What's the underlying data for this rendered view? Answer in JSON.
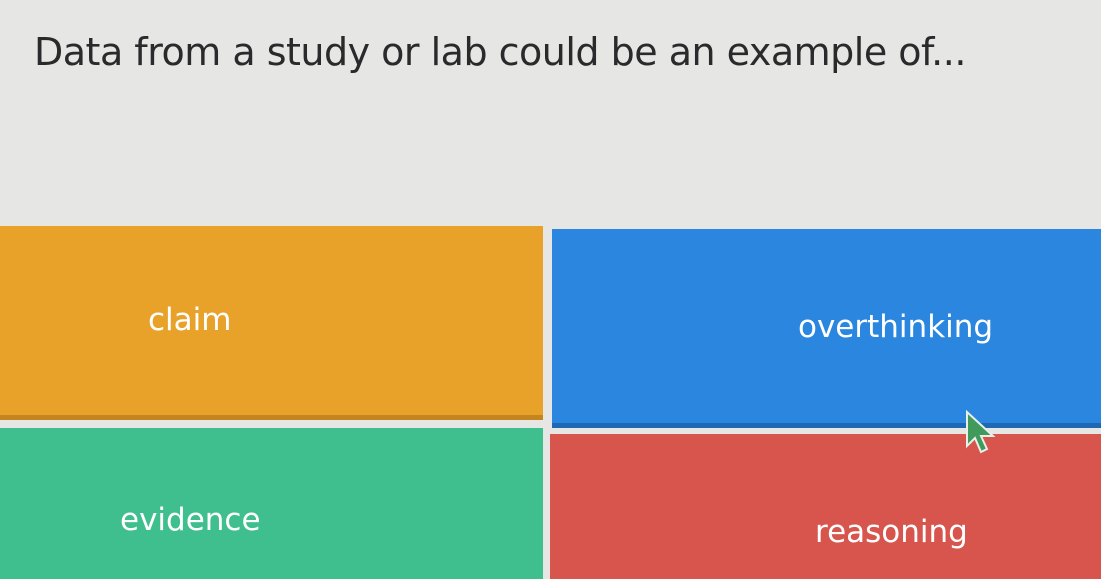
{
  "question": "Data from a study or lab could be an example of...",
  "options": [
    {
      "label": "claim",
      "color": "#e8a22a"
    },
    {
      "label": "overthinking",
      "color": "#2a86df"
    },
    {
      "label": "evidence",
      "color": "#3fbf8e"
    },
    {
      "label": "reasoning",
      "color": "#d8554e"
    }
  ]
}
